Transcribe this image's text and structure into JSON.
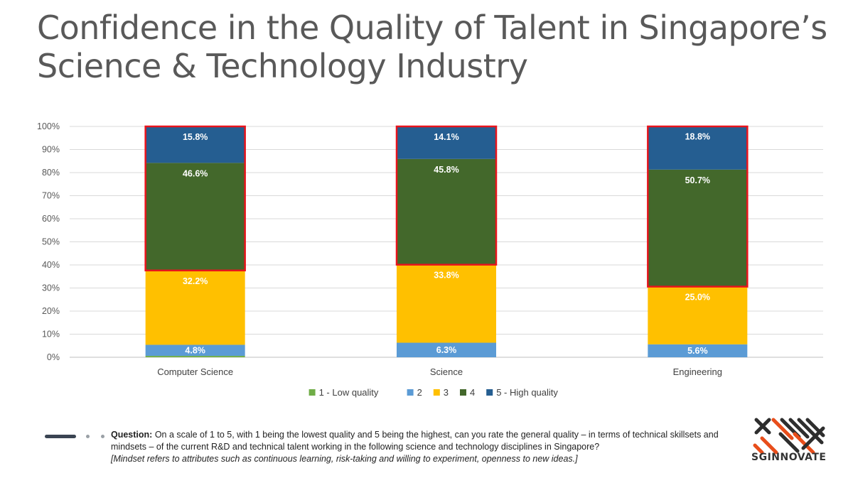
{
  "title": {
    "line1": "Confidence in the Quality of Talent in Singapore’s",
    "line2": "Science & Technology Industry"
  },
  "chart_data": {
    "type": "bar",
    "stacked": true,
    "percent": true,
    "categories": [
      "Computer Science",
      "Science",
      "Engineering"
    ],
    "series": [
      {
        "name": "1 - Low quality",
        "color": "#70ad47",
        "values": [
          0.6,
          0.0,
          0.0
        ],
        "labels": [
          "",
          "",
          ""
        ]
      },
      {
        "name": "2",
        "color": "#5b9bd5",
        "values": [
          4.8,
          6.3,
          5.6
        ],
        "labels": [
          "4.8%",
          "6.3%",
          "5.6%"
        ]
      },
      {
        "name": "3",
        "color": "#ffc000",
        "values": [
          32.2,
          33.8,
          25.0
        ],
        "labels": [
          "32.2%",
          "33.8%",
          "25.0%"
        ]
      },
      {
        "name": "4",
        "color": "#43682b",
        "values": [
          46.6,
          45.8,
          50.7
        ],
        "labels": [
          "46.6%",
          "45.8%",
          "50.7%"
        ]
      },
      {
        "name": "5 - High quality",
        "color": "#255e91",
        "values": [
          15.8,
          14.1,
          18.8
        ],
        "labels": [
          "15.8%",
          "14.1%",
          "18.8%"
        ]
      }
    ],
    "yticks": [
      "0%",
      "10%",
      "20%",
      "30%",
      "40%",
      "50%",
      "60%",
      "70%",
      "80%",
      "90%",
      "100%"
    ],
    "ylim": [
      0,
      100
    ],
    "grid": true,
    "legend_position": "bottom",
    "highlight": {
      "color": "#e8141c",
      "series": [
        "4",
        "5 - High quality"
      ]
    }
  },
  "footer": {
    "question_label": "Question:",
    "question_text": " On a scale of 1 to 5, with 1 being the lowest quality and 5 being the highest, can you rate the general quality – in terms of technical skillsets and mindsets – of the current R&D and technical talent working in the following science and technology disciplines in Singapore?",
    "note": "[Mindset refers to attributes such as continuous learning, risk-taking and willing to experiment, openness to new ideas.]"
  },
  "logo": {
    "text": "SGINNOVATE",
    "colors": {
      "dark": "#2e2e2e",
      "accent": "#e84e1b"
    }
  }
}
